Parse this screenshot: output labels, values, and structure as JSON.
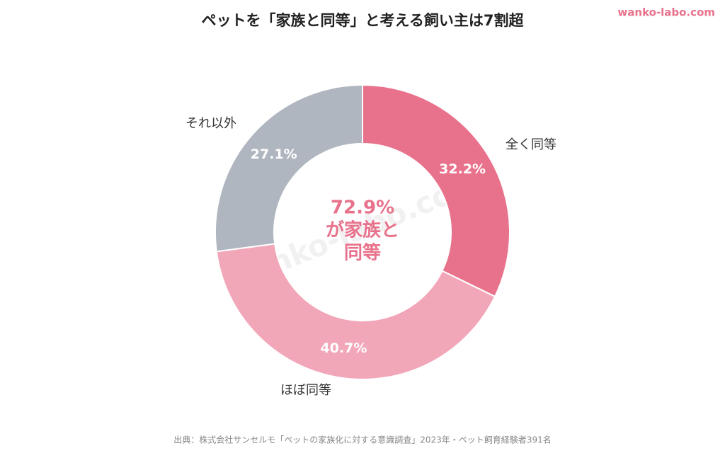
{
  "chart_data": {
    "type": "pie",
    "title": "ペットを「家族と同等」と考える飼い主は7割超",
    "brand": "wanko-labo.com",
    "categories": [
      "全く同等",
      "ほぼ同等",
      "それ以外"
    ],
    "values": [
      32.2,
      40.7,
      27.1
    ],
    "value_labels": [
      "32.2%",
      "40.7%",
      "27.1%"
    ],
    "colors": [
      "#e8728c",
      "#f2a7b9",
      "#b0b6bf"
    ],
    "center_label": [
      "72.9%",
      "が家族と",
      "同等"
    ],
    "source": "出典：株式会社サンセルモ「ペットの家族化に対する意識調査」2023年・ペット飼育経験者391名"
  }
}
